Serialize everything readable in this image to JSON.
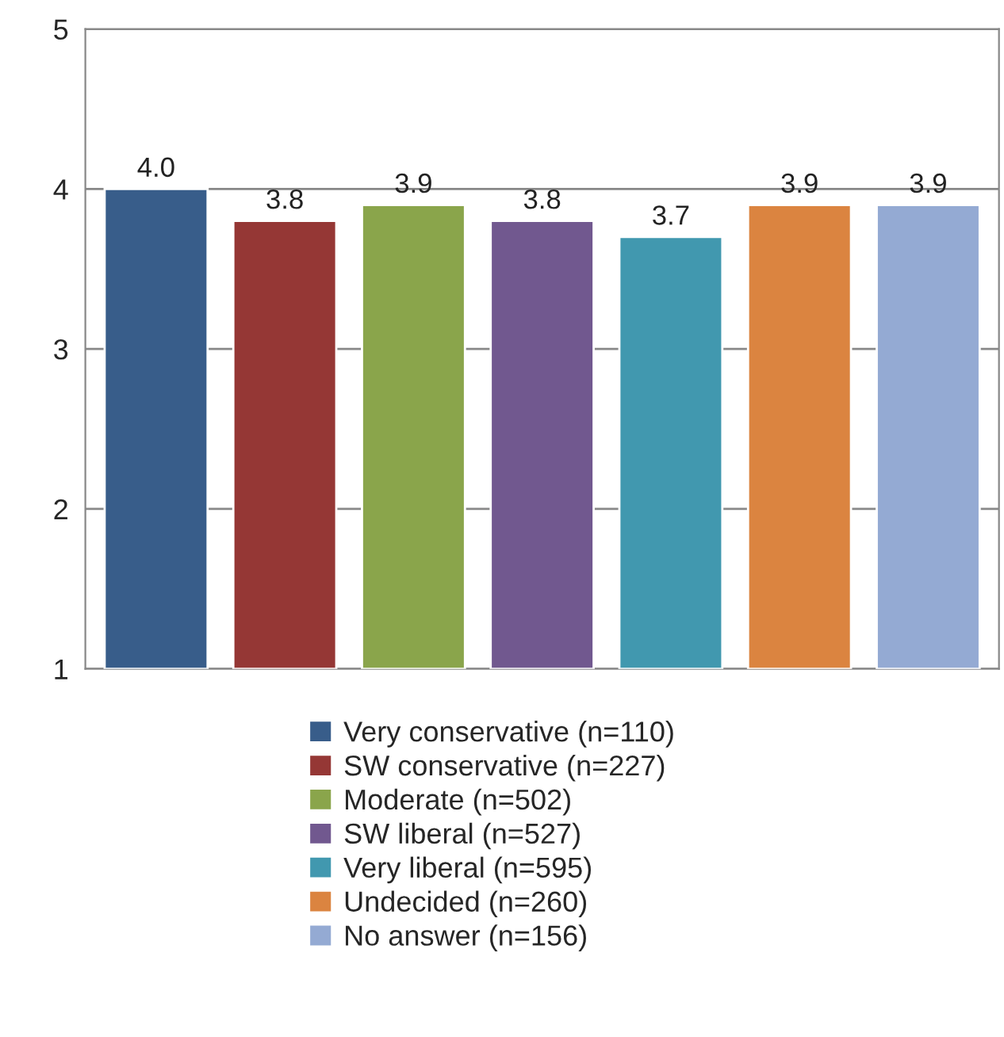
{
  "chart_data": {
    "type": "bar",
    "categories": [
      null,
      null,
      null,
      null,
      null,
      null,
      null
    ],
    "series": [
      {
        "name": "Very conservative (n=110)",
        "color": "#385d8a",
        "values": [
          4.0,
          null,
          null,
          null,
          null,
          null,
          null
        ]
      },
      {
        "name": "SW conservative (n=227)",
        "color": "#953735",
        "values": [
          null,
          3.8,
          null,
          null,
          null,
          null,
          null
        ]
      },
      {
        "name": "Moderate (n=502)",
        "color": "#8aa54b",
        "values": [
          null,
          null,
          3.9,
          null,
          null,
          null,
          null
        ]
      },
      {
        "name": "SW liberal (n=527)",
        "color": "#71588f",
        "values": [
          null,
          null,
          null,
          3.8,
          null,
          null,
          null
        ]
      },
      {
        "name": "Very liberal (n=595)",
        "color": "#4198af",
        "values": [
          null,
          null,
          null,
          null,
          3.7,
          null,
          null
        ]
      },
      {
        "name": "Undecided (n=260)",
        "color": "#db8440",
        "values": [
          null,
          null,
          null,
          null,
          null,
          3.9,
          null
        ]
      },
      {
        "name": "No answer (n=156)",
        "color": "#94aad3",
        "values": [
          null,
          null,
          null,
          null,
          null,
          null,
          3.9
        ]
      }
    ],
    "ylim": [
      1,
      5
    ],
    "yticks": [
      1,
      2,
      3,
      4,
      5
    ],
    "value_labels": [
      "4.0",
      "3.8",
      "3.9",
      "3.8",
      "3.7",
      "3.9",
      "3.9"
    ],
    "grid": "y",
    "legend": "bottom"
  }
}
